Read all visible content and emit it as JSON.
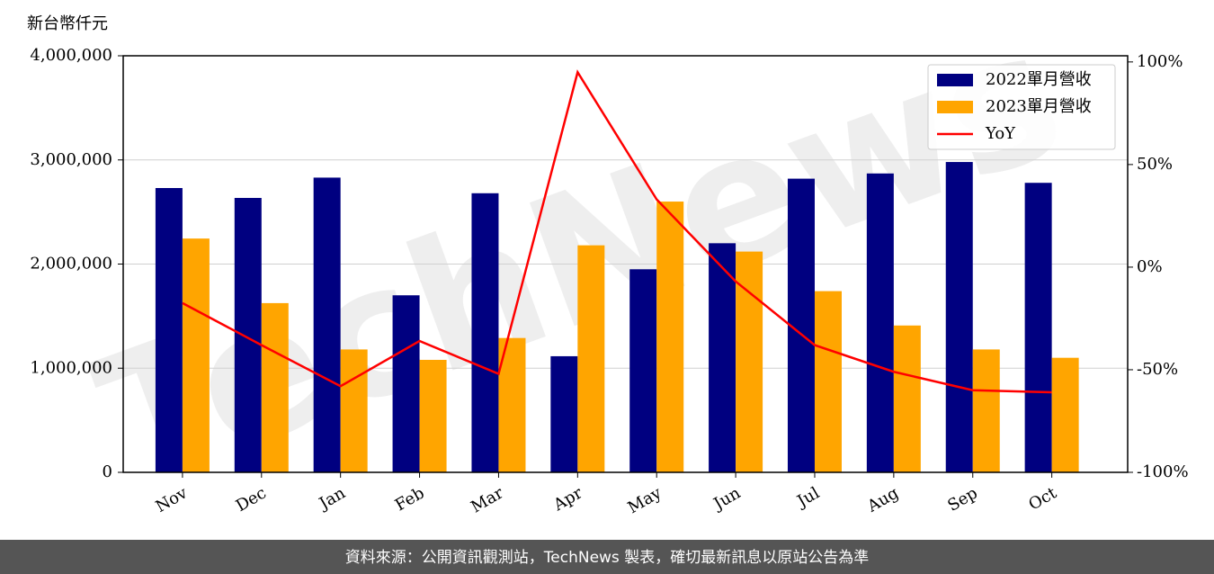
{
  "chart_data": {
    "type": "bar_line",
    "y_axis_label": "新台幣仟元",
    "watermark": "TechNews",
    "source": "資料來源：公開資訊觀測站，TechNews 製表，確切最新訊息以原站公告為準",
    "categories": [
      "Nov",
      "Dec",
      "Jan",
      "Feb",
      "Mar",
      "Apr",
      "May",
      "Jun",
      "Jul",
      "Aug",
      "Sep",
      "Oct"
    ],
    "series": [
      {
        "name": "2022單月營收",
        "color": "#000080",
        "type": "bar",
        "values": [
          2730000,
          2635000,
          2830000,
          1700000,
          2680000,
          1115000,
          1950000,
          2200000,
          2820000,
          2870000,
          2980000,
          2780000
        ]
      },
      {
        "name": "2023單月營收",
        "color": "#ffa500",
        "type": "bar",
        "values": [
          2245000,
          1625000,
          1180000,
          1080000,
          1290000,
          2180000,
          2600000,
          2120000,
          1740000,
          1410000,
          1180000,
          1100000
        ]
      },
      {
        "name": "YoY",
        "color": "#ff0000",
        "type": "line",
        "axis": "y2",
        "values": [
          -17.5,
          -38,
          -58,
          -36,
          -52,
          95,
          33,
          -7,
          -38,
          -51,
          -60,
          -61
        ]
      }
    ],
    "ylim": [
      0,
      4000000
    ],
    "yticks": [
      0,
      {
        "value": 1000000,
        "label": "1,000,000"
      },
      {
        "value": 2000000,
        "label": "2,000,000"
      },
      {
        "value": 3000000,
        "label": "3,000,000"
      },
      {
        "value": 4000000,
        "label": "4,000,000"
      }
    ],
    "y2lim": [
      -100,
      103
    ],
    "y2ticks": [
      {
        "value": -100,
        "label": "-100%"
      },
      {
        "value": -50,
        "label": "-50%"
      },
      {
        "value": 0,
        "label": "0%"
      },
      {
        "value": 50,
        "label": "50%"
      },
      {
        "value": 100,
        "label": "100%"
      }
    ],
    "grid": true,
    "legend": "upper-right"
  }
}
